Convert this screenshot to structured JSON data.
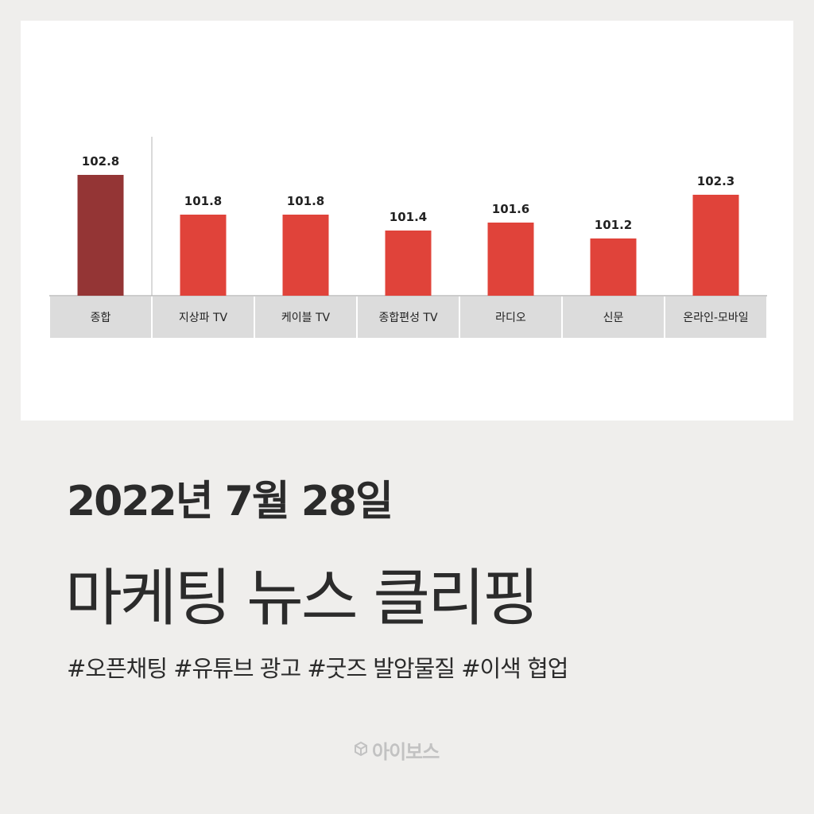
{
  "chart_data": {
    "type": "bar",
    "categories": [
      "종합",
      "지상파 TV",
      "케이블 TV",
      "종합편성 TV",
      "라디오",
      "신문",
      "온라인-모바일"
    ],
    "values": [
      102.8,
      101.8,
      101.8,
      101.4,
      101.6,
      101.2,
      102.3
    ],
    "value_labels": [
      "102.8",
      "101.8",
      "101.8",
      "101.4",
      "101.6",
      "101.2",
      "102.3"
    ],
    "colors": {
      "highlight": "#943535",
      "bar": "#e0433a",
      "category_bg": "#dcdcdc"
    },
    "title": "",
    "xlabel": "",
    "ylabel": ""
  },
  "headline": "2022년 7월 28일",
  "subtitle": "마케팅 뉴스 클리핑",
  "tags": "#오픈채팅 #유튜브 광고 #굿즈 발암물질 #이색 협업",
  "brand": {
    "name": "아이보스",
    "icon": "cube-icon"
  }
}
